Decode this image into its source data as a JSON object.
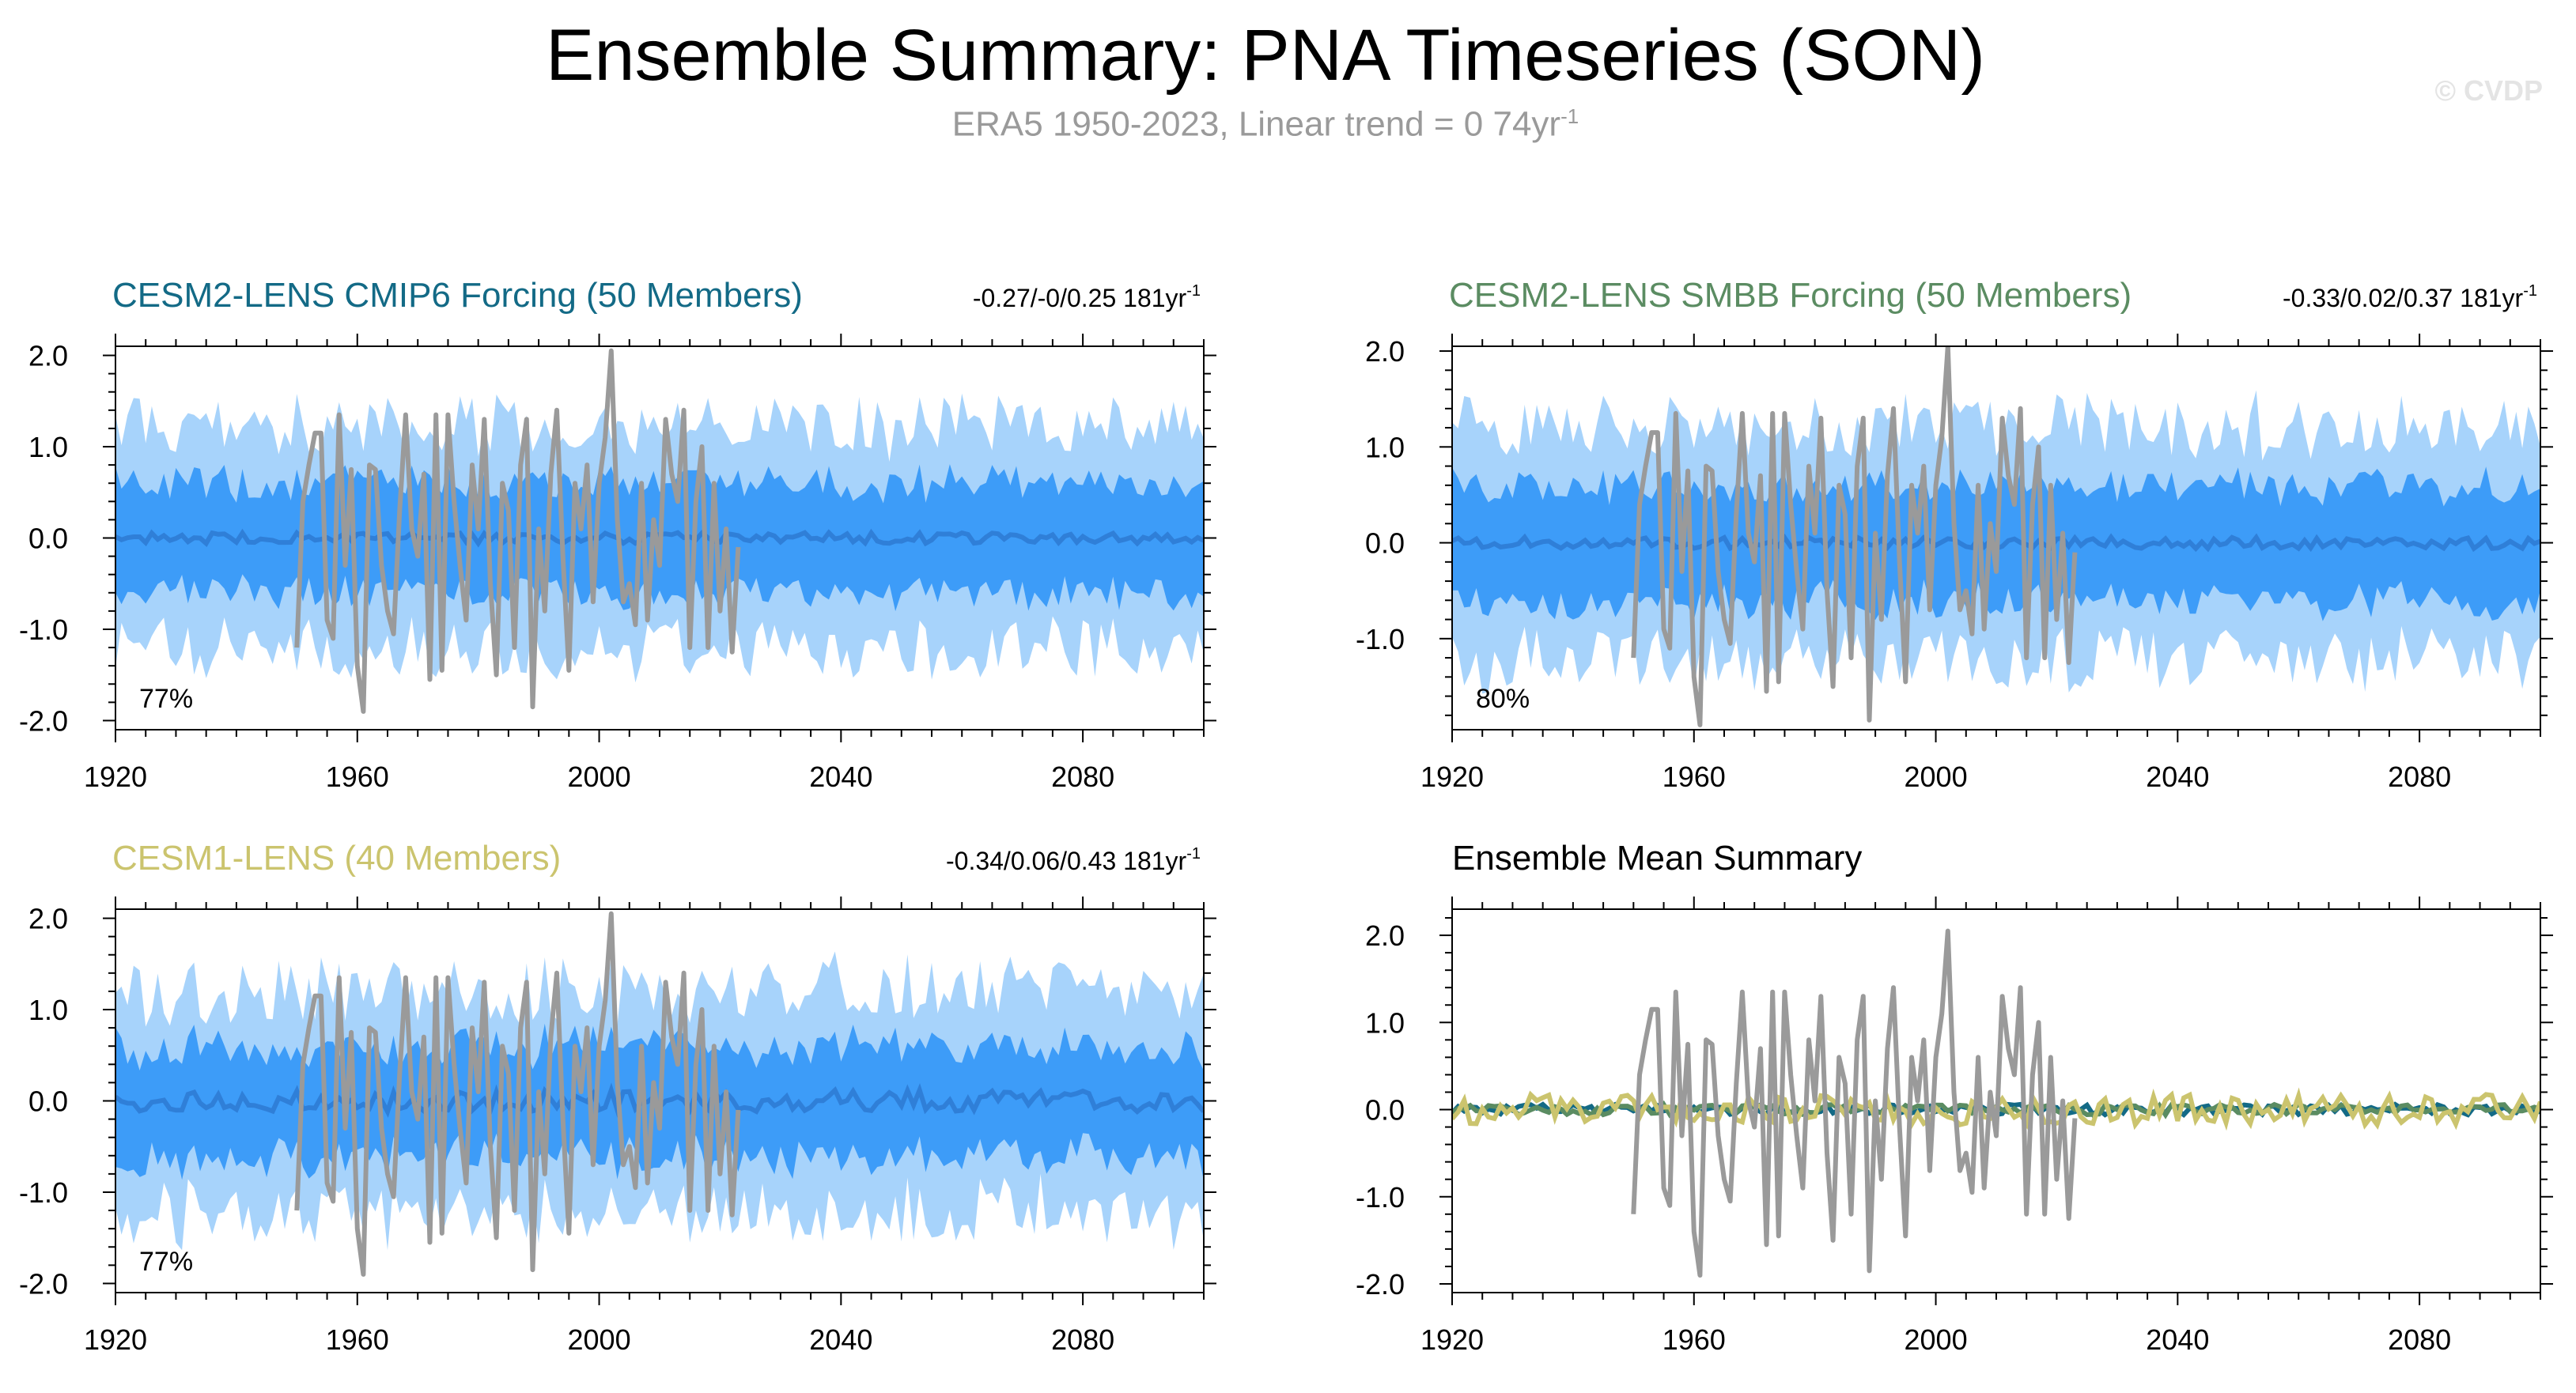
{
  "page": {
    "title": "Ensemble Summary: PNA Timeseries (SON)",
    "subtitle_text": "ERA5 1950-2023, Linear trend = 0 74yr",
    "subtitle_exp": "-1",
    "credit": "© CVDP"
  },
  "colors": {
    "spread_outer": "#a7d3fb",
    "spread_inner": "#3d9cf8",
    "ens_mean": "#2f7fd8",
    "obs": "#9a9a9a",
    "cesm2_cmip6": "#136a86",
    "cesm2_smbb": "#5b8c62",
    "cesm1": "#cbc46e"
  },
  "panels": [
    {
      "id": "cesm2-cmip6",
      "title": "CESM2-LENS CMIP6 Forcing (50 Members)",
      "title_color": "#136a86",
      "trend": "-0.27/-0/0.25 181yr",
      "trend_exp": "-1",
      "percent": "77%"
    },
    {
      "id": "cesm2-smbb",
      "title": "CESM2-LENS SMBB Forcing (50 Members)",
      "title_color": "#5b8c62",
      "trend": "-0.33/0.02/0.37 181yr",
      "trend_exp": "-1",
      "percent": "80%"
    },
    {
      "id": "cesm1",
      "title": "CESM1-LENS (40 Members)",
      "title_color": "#cbc46e",
      "trend": "-0.34/0.06/0.43 181yr",
      "trend_exp": "-1",
      "percent": "77%"
    },
    {
      "id": "ensemble-mean",
      "title": "Ensemble Mean Summary",
      "title_color": "#000000",
      "trend": "",
      "trend_exp": "",
      "percent": ""
    }
  ],
  "chart_data": [
    {
      "type": "area",
      "title": "CESM2-LENS CMIP6 Forcing (50 Members)",
      "x_range": [
        1920,
        2100
      ],
      "xticks": [
        1920,
        1960,
        2000,
        2040,
        2080
      ],
      "ylim": [
        -2.1,
        2.1
      ],
      "yticks": [
        "-2.0",
        "-1.0",
        "0.0",
        "1.0",
        "2.0"
      ],
      "series_note": "light blue = outer ensemble spread, dark blue = inner spread, blue line = ensemble mean, gray = ERA5 observations",
      "spread_outer_approx": [
        -1.2,
        1.2
      ],
      "spread_inner_approx": [
        -0.6,
        0.6
      ],
      "ensemble_mean_approx": 0.0
    },
    {
      "type": "area",
      "title": "CESM2-LENS SMBB Forcing (50 Members)",
      "x_range": [
        1920,
        2100
      ],
      "xticks": [
        1920,
        1960,
        2000,
        2040,
        2080
      ],
      "ylim": [
        -1.95,
        2.05
      ],
      "yticks": [
        "-1.0",
        "0.0",
        "1.0",
        "2.0"
      ],
      "spread_outer_approx": [
        -1.2,
        1.2
      ],
      "spread_inner_approx": [
        -0.6,
        0.6
      ],
      "ensemble_mean_approx": 0.0
    },
    {
      "type": "area",
      "title": "CESM1-LENS (40 Members)",
      "x_range": [
        1920,
        2100
      ],
      "xticks": [
        1920,
        1960,
        2000,
        2040,
        2080
      ],
      "ylim": [
        -2.1,
        2.1
      ],
      "yticks": [
        "-2.0",
        "-1.0",
        "0.0",
        "1.0",
        "2.0"
      ],
      "spread_outer_approx": [
        -1.2,
        1.2
      ],
      "spread_inner_approx": [
        -0.6,
        0.6
      ],
      "ensemble_mean_approx": 0.0
    },
    {
      "type": "line",
      "title": "Ensemble Mean Summary",
      "x_range": [
        1920,
        2100
      ],
      "xticks": [
        1920,
        1960,
        2000,
        2040,
        2080
      ],
      "ylim": [
        -2.1,
        2.3
      ],
      "yticks": [
        "-2.0",
        "-1.0",
        "0.0",
        "1.0",
        "2.0"
      ]
    }
  ],
  "obs": {
    "name": "ERA5",
    "years": [
      1950,
      1951,
      1952,
      1953,
      1954,
      1955,
      1956,
      1957,
      1958,
      1959,
      1960,
      1961,
      1962,
      1963,
      1964,
      1965,
      1966,
      1967,
      1968,
      1969,
      1970,
      1971,
      1972,
      1973,
      1974,
      1975,
      1976,
      1977,
      1978,
      1979,
      1980,
      1981,
      1982,
      1983,
      1984,
      1985,
      1986,
      1987,
      1988,
      1989,
      1990,
      1991,
      1992,
      1993,
      1994,
      1995,
      1996,
      1997,
      1998,
      1999,
      2000,
      2001,
      2002,
      2003,
      2004,
      2005,
      2006,
      2007,
      2008,
      2009,
      2010,
      2011,
      2012,
      2013,
      2014,
      2015,
      2016,
      2017,
      2018,
      2019,
      2020,
      2021,
      2022,
      2023
    ],
    "values": [
      -1.2,
      0.4,
      0.8,
      1.15,
      1.15,
      -0.9,
      -1.1,
      1.35,
      -0.3,
      0.75,
      -1.4,
      -1.9,
      0.8,
      0.75,
      -0.3,
      -0.8,
      -1.05,
      0.3,
      1.35,
      0.1,
      -0.2,
      0.7,
      -1.55,
      1.35,
      -1.45,
      1.35,
      0.4,
      -0.3,
      -0.9,
      0.8,
      0.1,
      1.3,
      -0.5,
      -1.5,
      0.6,
      0.3,
      -1.2,
      0.8,
      1.3,
      -1.85,
      0.1,
      -0.8,
      0.7,
      1.4,
      -0.2,
      -1.45,
      0.6,
      0.1,
      0.8,
      -0.7,
      0.6,
      1.1,
      2.05,
      0.2,
      -0.7,
      -0.5,
      -0.95,
      0.6,
      -0.9,
      0.2,
      -0.3,
      1.3,
      0.7,
      0.4,
      1.4,
      -1.2,
      0.4,
      1.0,
      -1.2,
      0.6,
      -0.8,
      0.1,
      -1.25,
      -0.1
    ]
  }
}
